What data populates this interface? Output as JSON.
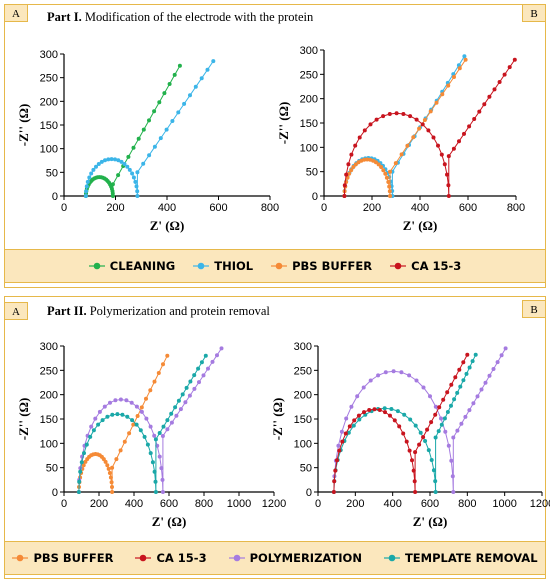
{
  "parts": [
    {
      "title_bold": "Part I.",
      "title_rest": " Modification of the electrode with the protein",
      "corner_left": "A",
      "corner_right": "B",
      "legend": [
        {
          "name": "CLEANING",
          "color": "#22b14c"
        },
        {
          "name": "THIOL",
          "color": "#3bb5e8"
        },
        {
          "name": "PBS BUFFER",
          "color": "#f58a36"
        },
        {
          "name": "CA 15-3",
          "color": "#c8141e"
        }
      ]
    },
    {
      "title_bold": "Part II.",
      "title_rest": " Polymerization and protein removal",
      "corner_left": "A",
      "corner_right": "B",
      "legend": [
        {
          "name": "PBS BUFFER",
          "color": "#f58a36"
        },
        {
          "name": "CA 15-3",
          "color": "#c8141e"
        },
        {
          "name": "POLYMERIZATION",
          "color": "#a57be0"
        },
        {
          "name": "TEMPLATE REMOVAL",
          "color": "#1aa8a8"
        }
      ]
    }
  ],
  "chart_data": [
    {
      "id": "part1-A",
      "type": "scatter",
      "xlabel": "Z' (Ω)",
      "ylabel": "-Z'' (Ω)",
      "xlim": [
        0,
        800
      ],
      "ylim": [
        0,
        300
      ],
      "xticks": [
        0,
        200,
        400,
        600,
        800
      ],
      "yticks": [
        0,
        50,
        100,
        150,
        200,
        250,
        300
      ],
      "series": [
        {
          "name": "CLEANING",
          "color": "#22b14c",
          "arc": {
            "start": 85,
            "diameter": 105,
            "height": 40
          },
          "tail": {
            "x": [
              190,
              450
            ],
            "y": [
              25,
              275
            ]
          }
        },
        {
          "name": "THIOL",
          "color": "#3bb5e8",
          "arc": {
            "start": 85,
            "diameter": 200,
            "height": 78
          },
          "tail": {
            "x": [
              285,
              580
            ],
            "y": [
              50,
              285
            ]
          }
        }
      ]
    },
    {
      "id": "part1-B",
      "type": "scatter",
      "xlabel": "Z' (Ω)",
      "ylabel": "-Z'' (Ω)",
      "xlim": [
        0,
        800
      ],
      "ylim": [
        0,
        300
      ],
      "xticks": [
        0,
        200,
        400,
        600,
        800
      ],
      "yticks": [
        0,
        50,
        100,
        150,
        200,
        250,
        300
      ],
      "series": [
        {
          "name": "THIOL",
          "color": "#3bb5e8",
          "arc": {
            "start": 85,
            "diameter": 200,
            "height": 78
          },
          "tail": {
            "x": [
              285,
              585
            ],
            "y": [
              50,
              287
            ]
          }
        },
        {
          "name": "PBS BUFFER",
          "color": "#f58a36",
          "arc": {
            "start": 85,
            "diameter": 190,
            "height": 75
          },
          "tail": {
            "x": [
              275,
              590
            ],
            "y": [
              50,
              280
            ]
          }
        },
        {
          "name": "CA 15-3",
          "color": "#c8141e",
          "arc": {
            "start": 85,
            "diameter": 435,
            "height": 170
          },
          "tail": {
            "x": [
              520,
              795
            ],
            "y": [
              82,
              280
            ]
          }
        }
      ]
    },
    {
      "id": "part2-A",
      "type": "scatter",
      "xlabel": "Z' (Ω)",
      "ylabel": "-Z'' (Ω)",
      "xlim": [
        0,
        1200
      ],
      "ylim": [
        0,
        300
      ],
      "xticks": [
        0,
        200,
        400,
        600,
        800,
        1000,
        1200
      ],
      "yticks": [
        0,
        50,
        100,
        150,
        200,
        250,
        300
      ],
      "series": [
        {
          "name": "PBS BUFFER",
          "color": "#f58a36",
          "arc": {
            "start": 85,
            "diameter": 190,
            "height": 78
          },
          "tail": {
            "x": [
              275,
              590
            ],
            "y": [
              50,
              280
            ]
          }
        },
        {
          "name": "POLYMERIZATION",
          "color": "#a57be0",
          "arc": {
            "start": 85,
            "diameter": 480,
            "height": 190
          },
          "tail": {
            "x": [
              565,
              900
            ],
            "y": [
              115,
              295
            ]
          }
        },
        {
          "name": "TEMPLATE REMOVAL",
          "color": "#1aa8a8",
          "arc": {
            "start": 85,
            "diameter": 440,
            "height": 160
          },
          "tail": {
            "x": [
              525,
              810
            ],
            "y": [
              108,
              280
            ]
          }
        }
      ]
    },
    {
      "id": "part2-B",
      "type": "scatter",
      "xlabel": "Z' (Ω)",
      "ylabel": "-Z'' (Ω)",
      "xlim": [
        0,
        1200
      ],
      "ylim": [
        0,
        300
      ],
      "xticks": [
        0,
        200,
        400,
        600,
        800,
        1000,
        1200
      ],
      "yticks": [
        0,
        50,
        100,
        150,
        200,
        250,
        300
      ],
      "series": [
        {
          "name": "POLYMERIZATION",
          "color": "#a57be0",
          "arc": {
            "start": 85,
            "diameter": 640,
            "height": 248
          },
          "tail": {
            "x": [
              725,
              1005
            ],
            "y": [
              112,
              295
            ]
          }
        },
        {
          "name": "TEMPLATE REMOVAL",
          "color": "#1aa8a8",
          "arc": {
            "start": 85,
            "diameter": 545,
            "height": 172
          },
          "tail": {
            "x": [
              630,
              845
            ],
            "y": [
              112,
              282
            ]
          }
        },
        {
          "name": "CA 15-3",
          "color": "#c8141e",
          "arc": {
            "start": 85,
            "diameter": 435,
            "height": 170
          },
          "tail": {
            "x": [
              520,
              800
            ],
            "y": [
              82,
              282
            ]
          }
        }
      ]
    }
  ]
}
